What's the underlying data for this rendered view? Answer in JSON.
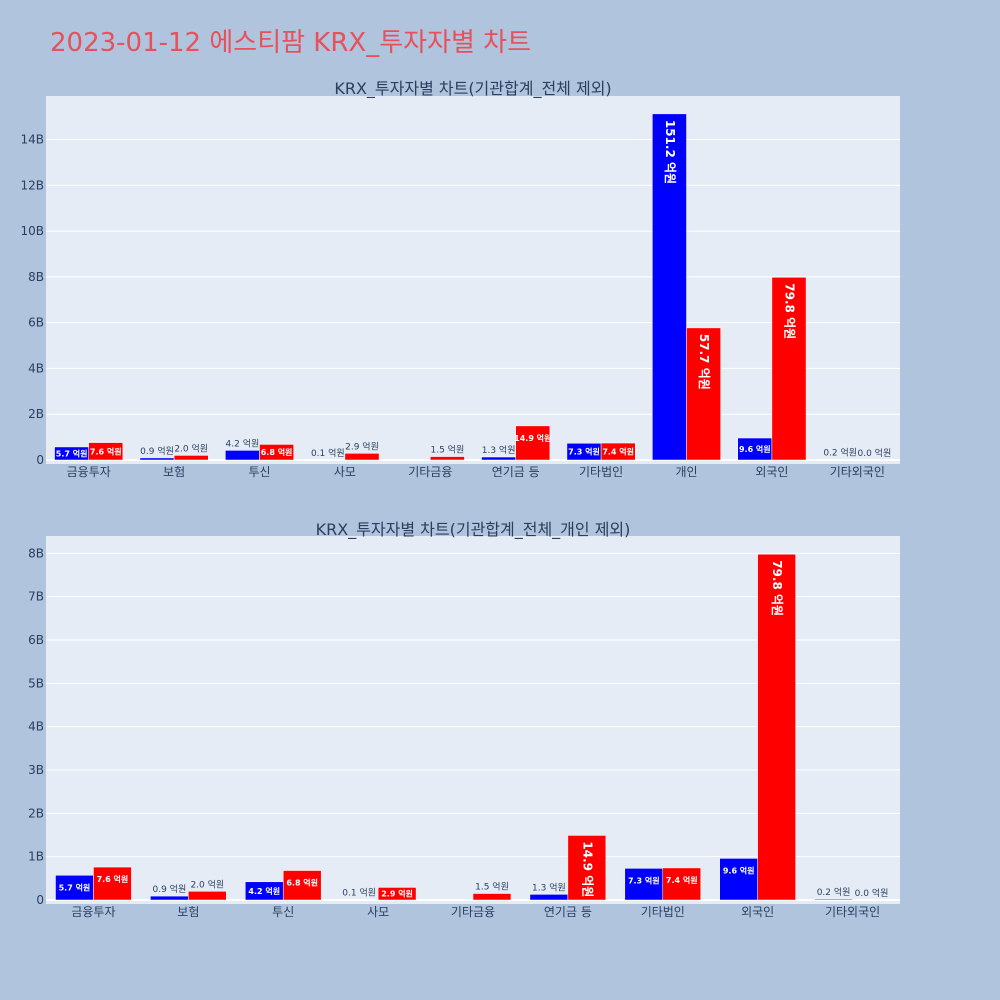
{
  "title": "2023-01-12 에스티팜 KRX_투자자별 차트",
  "chart_data": [
    {
      "type": "bar",
      "title": "KRX_투자자별 차트(기관합계_전체 제외)",
      "categories": [
        "금융투자",
        "보험",
        "투신",
        "사모",
        "기타금융",
        "연기금 등",
        "기타법인",
        "개인",
        "외국인",
        "기타외국인"
      ],
      "series": [
        {
          "color": "#0000ff",
          "values": [
            570000000,
            90000000,
            420000000,
            10000000,
            0,
            130000000,
            730000000,
            15120000000,
            960000000,
            20000000
          ],
          "labels": [
            "5.7 억원",
            "0.9 억원",
            "4.2 억원",
            "0.1 억원",
            "",
            "1.3 억원",
            "7.3 억원",
            "151.2 억원",
            "9.6 억원",
            "0.2 억원"
          ]
        },
        {
          "color": "#ff0000",
          "values": [
            760000000,
            200000000,
            680000000,
            290000000,
            150000000,
            1490000000,
            740000000,
            5770000000,
            7980000000,
            0
          ],
          "labels": [
            "7.6 억원",
            "2.0 억원",
            "6.8 억원",
            "2.9 억원",
            "1.5 억원",
            "14.9 억원",
            "7.4 억원",
            "57.7 억원",
            "79.8 억원",
            "0.0 억원"
          ]
        }
      ],
      "yticks": [
        0,
        2000000000,
        4000000000,
        6000000000,
        8000000000,
        10000000000,
        12000000000,
        14000000000
      ],
      "ytick_labels": [
        "0",
        "2B",
        "4B",
        "6B",
        "8B",
        "10B",
        "12B",
        "14B"
      ],
      "ylim": [
        0,
        15900000000
      ],
      "grid": true
    },
    {
      "type": "bar",
      "title": "KRX_투자자별 차트(기관합계_전체_개인 제외)",
      "categories": [
        "금융투자",
        "보험",
        "투신",
        "사모",
        "기타금융",
        "연기금 등",
        "기타법인",
        "외국인",
        "기타외국인"
      ],
      "series": [
        {
          "color": "#0000ff",
          "values": [
            570000000,
            90000000,
            420000000,
            10000000,
            0,
            130000000,
            730000000,
            960000000,
            20000000
          ],
          "labels": [
            "5.7 억원",
            "0.9 억원",
            "4.2 억원",
            "0.1 억원",
            "",
            "1.3 억원",
            "7.3 억원",
            "9.6 억원",
            "0.2 억원"
          ]
        },
        {
          "color": "#ff0000",
          "values": [
            760000000,
            200000000,
            680000000,
            290000000,
            150000000,
            1490000000,
            740000000,
            7980000000,
            0
          ],
          "labels": [
            "7.6 억원",
            "2.0 억원",
            "6.8 억원",
            "2.9 억원",
            "1.5 억원",
            "14.9 억원",
            "7.4 억원",
            "79.8 억원",
            "0.0 억원"
          ]
        }
      ],
      "yticks": [
        0,
        1000000000,
        2000000000,
        3000000000,
        4000000000,
        5000000000,
        6000000000,
        7000000000,
        8000000000
      ],
      "ytick_labels": [
        "0",
        "1B",
        "2B",
        "3B",
        "4B",
        "5B",
        "6B",
        "7B",
        "8B"
      ],
      "ylim": [
        0,
        8400000000
      ],
      "grid": true
    }
  ]
}
